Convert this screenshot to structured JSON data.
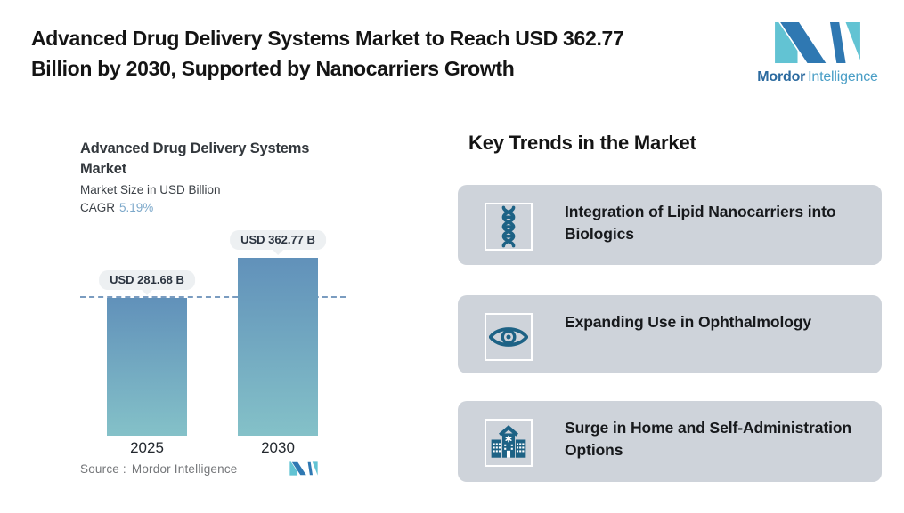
{
  "header": {
    "title": "Advanced Drug Delivery Systems Market to Reach USD 362.77 Billion by 2030, Supported by Nanocarriers Growth"
  },
  "brand": {
    "logo_icon": "mordor-intelligence-monogram",
    "name_bold": "Mordor",
    "name_light": "Intelligence"
  },
  "chart_data": {
    "type": "bar",
    "title": "Advanced Drug Delivery Systems Market",
    "subtitle": "Market Size in USD Billion",
    "cagr_label": "CAGR",
    "cagr_value": "5.19%",
    "categories": [
      "2025",
      "2030"
    ],
    "values": [
      281.68,
      362.77
    ],
    "bar_labels": [
      "USD 281.68 B",
      "USD 362.77 B"
    ],
    "unit": "USD Billion",
    "grid": "off",
    "legend": "none",
    "annotations": [
      "dashed horizontal reference line at 2025 bar top (281.68)"
    ],
    "source_label": "Source :",
    "source_value": "Mordor Intelligence"
  },
  "trends": {
    "heading": "Key Trends in the Market",
    "cards": [
      {
        "icon": "dna-helix-icon",
        "label": "Integration of Lipid Nanocarriers into Biologics"
      },
      {
        "icon": "eye-icon",
        "label": "Expanding Use in Ophthalmology"
      },
      {
        "icon": "hospital-building-icon",
        "label": "Surge in Home and Self-Administration Options"
      }
    ]
  },
  "colors": {
    "brand_blue": "#2f78b2",
    "brand_teal": "#62c3d3",
    "trend_icon_teal": "#1d6285",
    "card_bg": "#ced3da",
    "bar_gradient_top": "#6191ba",
    "bar_gradient_bottom": "#84c1c8",
    "dashed_line": "#7a9cc0",
    "cagr_value_color": "#7ca8ca",
    "label_pill_bg": "#edf0f2",
    "source_text": "#75777a"
  }
}
